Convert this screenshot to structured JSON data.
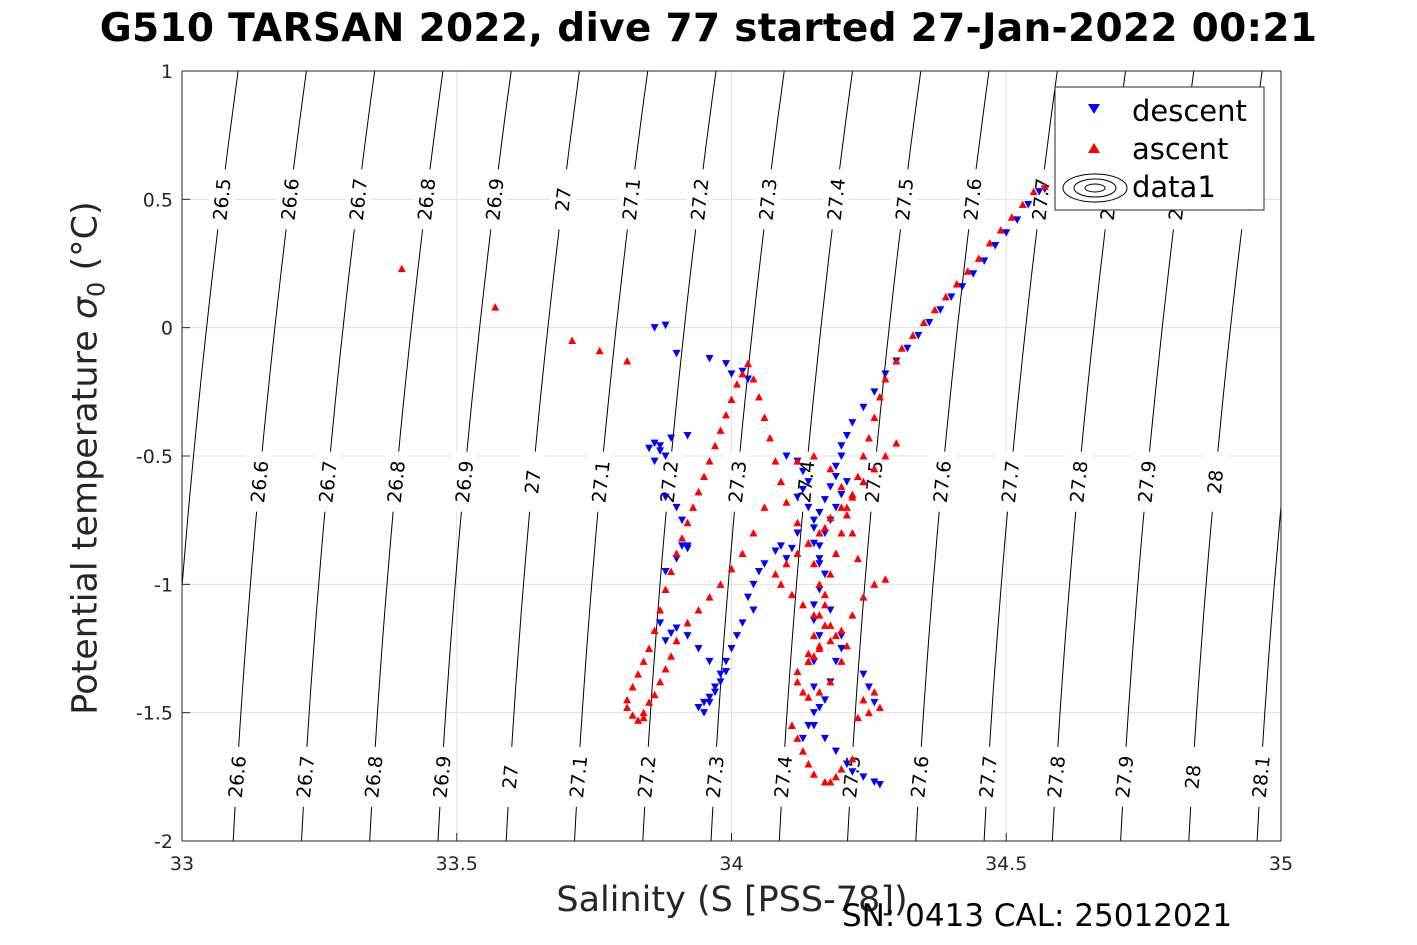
{
  "title": "G510 TARSAN 2022, dive 77 started 27-Jan-2022 00:21",
  "footer": "SN: 0413  CAL: 25012021",
  "colors": {
    "descent": "#0000ff",
    "ascent": "#ff0000",
    "grid": "#e0e0e0",
    "contour": "#000000",
    "axis": "#262626"
  },
  "chart_data": {
    "type": "scatter",
    "title": "G510 TARSAN 2022, dive 77 started 27-Jan-2022 00:21",
    "xlabel": "Salinity (S [PSS-78])",
    "ylabel_main": "Potential temperature",
    "ylabel_sym": "σ",
    "ylabel_sub": "0",
    "ylabel_unit": "(°C)",
    "xlim": [
      33,
      35
    ],
    "ylim": [
      -2,
      1
    ],
    "xticks": [
      33,
      33.5,
      34,
      34.5,
      35
    ],
    "yticks": [
      -2,
      -1.5,
      -1,
      -0.5,
      0,
      0.5,
      1
    ],
    "grid": true,
    "legend_position": "top-right",
    "legend": [
      "descent",
      "ascent",
      "data1"
    ],
    "density_contours": [
      26.5,
      26.6,
      26.7,
      26.8,
      26.9,
      27,
      27.1,
      27.2,
      27.3,
      27.4,
      27.5,
      27.6,
      27.7,
      27.8,
      27.9,
      28,
      28.1
    ],
    "series": [
      {
        "name": "descent",
        "marker": "triangle-down",
        "x": [
          34.57,
          34.56,
          34.54,
          34.52,
          34.5,
          34.48,
          34.46,
          34.44,
          34.42,
          34.4,
          34.38,
          34.36,
          34.34,
          34.32,
          34.3,
          34.28,
          34.26,
          34.24,
          34.22,
          34.21,
          34.2,
          34.2,
          34.19,
          34.19,
          34.18,
          34.17,
          34.16,
          34.15,
          34.15,
          34.16,
          34.17,
          34.16,
          34.15,
          34.15,
          34.16,
          34.15,
          34.15,
          34.16,
          34.15,
          34.17,
          34.19,
          34.21,
          34.22,
          34.24,
          34.26,
          34.27,
          33.86,
          33.88,
          33.9,
          33.96,
          33.99,
          34,
          34.02,
          34.03,
          33.86,
          33.87,
          33.88,
          33.86,
          33.85,
          33.87,
          33.89,
          33.92,
          33.91,
          33.92,
          33.88,
          33.9,
          34.1,
          34.12,
          34.13,
          34.14,
          34.13,
          34.12,
          34.14,
          34.15,
          34.12,
          34.11,
          34.1,
          34.09,
          34.08,
          34.06,
          34.05,
          34.04,
          34.03,
          34.04,
          34.02,
          34.01,
          34,
          33.99,
          33.98,
          33.97,
          33.96,
          33.95,
          33.94,
          33.95,
          33.96,
          33.97,
          33.98,
          33.99,
          33.96,
          33.94,
          33.92,
          33.9,
          33.89,
          33.88,
          33.87,
          33.88,
          33.9,
          33.92,
          33.91,
          34.13,
          34.14,
          34.15,
          34.17,
          34.18,
          34.19,
          34.2,
          34.2,
          34.18,
          34.16,
          34.16,
          34.17,
          34.18,
          34.19,
          34.2,
          34.21,
          34.24,
          34.25,
          34.26
        ],
        "y": [
          0.54,
          0.53,
          0.48,
          0.42,
          0.37,
          0.32,
          0.26,
          0.21,
          0.16,
          0.12,
          0.07,
          0.02,
          -0.03,
          -0.08,
          -0.13,
          -0.18,
          -0.25,
          -0.31,
          -0.37,
          -0.42,
          -0.46,
          -0.5,
          -0.54,
          -0.58,
          -0.62,
          -0.67,
          -0.72,
          -0.78,
          -0.84,
          -0.9,
          -0.96,
          -1.02,
          -1.08,
          -1.14,
          -1.2,
          -1.3,
          -1.4,
          -1.48,
          -1.55,
          -1.6,
          -1.65,
          -1.7,
          -1.73,
          -1.75,
          -1.77,
          -1.78,
          0,
          0.01,
          -0.1,
          -0.12,
          -0.14,
          -0.18,
          -0.17,
          -0.2,
          -0.45,
          -0.48,
          -0.5,
          -0.52,
          -0.47,
          -0.46,
          -0.43,
          -0.42,
          -0.75,
          -0.85,
          -0.66,
          -0.7,
          -0.5,
          -0.52,
          -0.56,
          -0.6,
          -0.63,
          -0.66,
          -0.7,
          -0.75,
          -0.8,
          -0.86,
          -0.9,
          -0.85,
          -0.87,
          -0.92,
          -0.95,
          -1,
          -1.05,
          -1.1,
          -1.15,
          -1.2,
          -1.25,
          -1.3,
          -1.35,
          -1.4,
          -1.44,
          -1.46,
          -1.48,
          -1.5,
          -1.46,
          -1.42,
          -1.38,
          -1.34,
          -1.3,
          -1.25,
          -1.2,
          -1.17,
          -1.19,
          -1.22,
          -1.15,
          -0.95,
          -0.9,
          -0.86,
          -0.85,
          -1.6,
          -1.55,
          -1.5,
          -1.45,
          -1.38,
          -1.3,
          -1.25,
          -1.2,
          -1.1,
          -0.92,
          -0.85,
          -0.8,
          -0.75,
          -0.7,
          -0.65,
          -0.6,
          -1.35,
          -1.4,
          -1.46
        ]
      },
      {
        "name": "ascent",
        "marker": "triangle-up",
        "x": [
          34.57,
          34.55,
          34.53,
          34.51,
          34.49,
          34.47,
          34.45,
          34.43,
          34.41,
          34.39,
          34.37,
          34.35,
          34.33,
          34.31,
          34.3,
          34.28,
          34.27,
          34.26,
          34.25,
          34.24,
          34.23,
          34.22,
          34.21,
          34.2,
          34.19,
          34.18,
          34.17,
          34.16,
          34.15,
          34.14,
          34.14,
          34.15,
          34.16,
          34.18,
          34.2,
          34.22,
          34.24,
          34.26,
          34.28,
          34.23,
          34.22,
          34.21,
          34.2,
          34.18,
          34.15,
          34.12,
          34.09,
          34.06,
          34.04,
          34.02,
          34,
          33.98,
          33.96,
          33.94,
          33.92,
          33.9,
          33.89,
          33.88,
          33.87,
          33.86,
          33.85,
          33.84,
          33.84,
          33.83,
          33.82,
          33.81,
          33.81,
          33.82,
          33.83,
          33.84,
          33.85,
          33.86,
          33.87,
          33.88,
          33.89,
          33.9,
          33.91,
          33.92,
          33.93,
          33.94,
          33.95,
          33.96,
          33.97,
          33.98,
          33.99,
          34,
          34.01,
          34.02,
          34.03,
          34.04,
          34.05,
          34.06,
          34.07,
          34.08,
          34.09,
          34.1,
          34.12,
          34.14,
          34.15,
          34.16,
          34.17,
          34.18,
          34.16,
          34.14,
          34.12,
          34.12,
          34.13,
          34.14,
          34.16,
          34.18,
          34.2,
          34.21,
          34.19,
          34.17,
          34.15,
          34.13,
          34.11,
          34.09,
          34.08,
          34.1,
          34.12,
          34.14,
          34.16,
          34.17,
          34.18,
          34.2,
          34.22,
          34.24,
          34.26,
          34.28,
          34.3,
          34.11,
          34.12,
          34.13,
          34.14,
          34.15,
          34.17,
          34.18,
          34.19,
          34.2,
          34.22,
          33.4,
          33.57,
          33.71,
          33.76,
          33.81,
          34.23,
          34.25,
          34.27,
          34.24,
          34.26
        ],
        "y": [
          0.55,
          0.53,
          0.48,
          0.43,
          0.38,
          0.33,
          0.27,
          0.22,
          0.17,
          0.12,
          0.07,
          0.02,
          -0.03,
          -0.08,
          -0.13,
          -0.2,
          -0.27,
          -0.35,
          -0.43,
          -0.5,
          -0.58,
          -0.66,
          -0.73,
          -0.8,
          -0.88,
          -0.96,
          -1.04,
          -1.12,
          -1.2,
          -1.27,
          -1.3,
          -1.28,
          -1.25,
          -1.22,
          -1.18,
          -1.12,
          -1.05,
          -1,
          -0.98,
          -0.9,
          -0.8,
          -0.7,
          -0.62,
          -0.55,
          -0.5,
          -0.52,
          -0.6,
          -0.7,
          -0.8,
          -0.88,
          -0.94,
          -1,
          -1.05,
          -1.1,
          -1.15,
          -1.22,
          -1.28,
          -1.33,
          -1.38,
          -1.43,
          -1.46,
          -1.5,
          -1.52,
          -1.53,
          -1.51,
          -1.48,
          -1.45,
          -1.4,
          -1.35,
          -1.3,
          -1.25,
          -1.18,
          -1.1,
          -1.02,
          -0.95,
          -0.88,
          -0.82,
          -0.76,
          -0.7,
          -0.64,
          -0.58,
          -0.52,
          -0.46,
          -0.4,
          -0.34,
          -0.28,
          -0.22,
          -0.18,
          -0.14,
          -0.2,
          -0.27,
          -0.35,
          -0.43,
          -0.52,
          -0.6,
          -0.68,
          -0.76,
          -0.84,
          -0.92,
          -1,
          -1.08,
          -1.16,
          -1.24,
          -1.3,
          -1.34,
          -1.38,
          -1.42,
          -1.44,
          -1.42,
          -1.38,
          -1.3,
          -1.24,
          -1.2,
          -1.16,
          -1.12,
          -1.08,
          -1.04,
          -1,
          -0.96,
          -0.92,
          -0.88,
          -0.84,
          -0.8,
          -0.78,
          -0.74,
          -0.7,
          -0.65,
          -0.6,
          -0.55,
          -0.5,
          -0.45,
          -1.55,
          -1.6,
          -1.65,
          -1.7,
          -1.74,
          -1.77,
          -1.77,
          -1.75,
          -1.72,
          -1.68,
          0.23,
          0.08,
          -0.05,
          -0.09,
          -0.13,
          -1.52,
          -1.5,
          -1.48,
          -1.45,
          -1.42
        ]
      }
    ]
  }
}
